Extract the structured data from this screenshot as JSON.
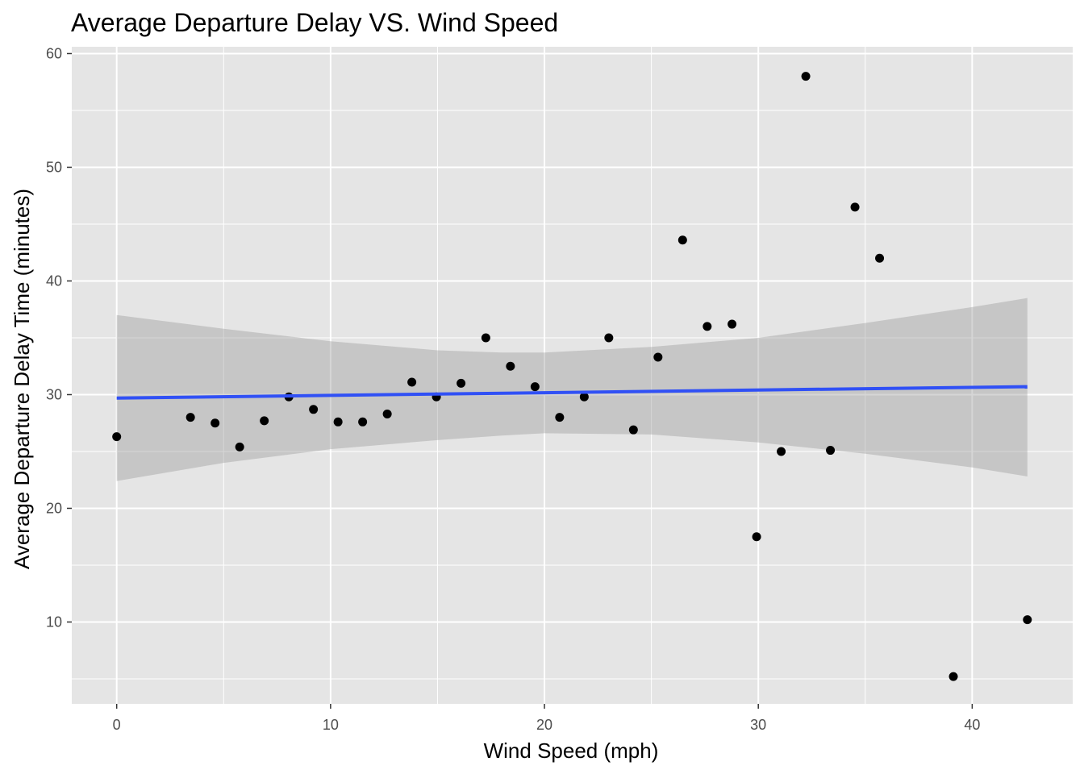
{
  "chart_data": {
    "type": "scatter",
    "title": "Average Departure Delay VS. Wind Speed",
    "xlabel": "Wind Speed (mph)",
    "ylabel": "Average Departure Delay Time (minutes)",
    "xlim": [
      -2.1,
      44.7
    ],
    "ylim": [
      2.8,
      60.6
    ],
    "x_ticks": [
      0,
      10,
      20,
      30,
      40
    ],
    "y_ticks": [
      10,
      20,
      30,
      40,
      50,
      60
    ],
    "grid": true,
    "points": [
      {
        "x": 0.0,
        "y": 26.3
      },
      {
        "x": 3.45,
        "y": 28.0
      },
      {
        "x": 4.6,
        "y": 27.5
      },
      {
        "x": 5.75,
        "y": 25.4
      },
      {
        "x": 6.9,
        "y": 27.7
      },
      {
        "x": 8.05,
        "y": 29.8
      },
      {
        "x": 9.2,
        "y": 28.7
      },
      {
        "x": 10.35,
        "y": 27.6
      },
      {
        "x": 11.5,
        "y": 27.6
      },
      {
        "x": 12.65,
        "y": 28.3
      },
      {
        "x": 13.8,
        "y": 31.1
      },
      {
        "x": 14.95,
        "y": 29.8
      },
      {
        "x": 16.1,
        "y": 31.0
      },
      {
        "x": 17.26,
        "y": 35.0
      },
      {
        "x": 18.41,
        "y": 32.5
      },
      {
        "x": 19.56,
        "y": 30.7
      },
      {
        "x": 20.71,
        "y": 28.0
      },
      {
        "x": 21.86,
        "y": 29.8
      },
      {
        "x": 23.01,
        "y": 35.0
      },
      {
        "x": 24.16,
        "y": 26.9
      },
      {
        "x": 25.31,
        "y": 33.3
      },
      {
        "x": 26.46,
        "y": 43.6
      },
      {
        "x": 27.61,
        "y": 36.0
      },
      {
        "x": 28.77,
        "y": 36.2
      },
      {
        "x": 29.92,
        "y": 17.5
      },
      {
        "x": 31.07,
        "y": 25.0
      },
      {
        "x": 32.22,
        "y": 58.0
      },
      {
        "x": 33.37,
        "y": 25.1
      },
      {
        "x": 34.52,
        "y": 46.5
      },
      {
        "x": 35.67,
        "y": 42.0
      },
      {
        "x": 39.12,
        "y": 5.2
      },
      {
        "x": 42.58,
        "y": 10.2
      }
    ],
    "trend_line": {
      "method": "linear",
      "color": "#3050f5",
      "x": [
        0,
        42.58
      ],
      "y": [
        29.7,
        30.7
      ],
      "confidence_band": {
        "x": [
          0,
          5,
          10,
          15,
          18,
          20,
          25,
          30,
          35,
          40,
          42.58
        ],
        "lower": [
          22.4,
          24.0,
          25.2,
          26.0,
          26.4,
          26.6,
          26.5,
          25.8,
          24.8,
          23.6,
          22.8
        ],
        "upper": [
          37.0,
          35.8,
          34.7,
          33.9,
          33.7,
          33.7,
          34.2,
          35.0,
          36.3,
          37.7,
          38.5
        ]
      }
    },
    "colors": {
      "panel_background": "#e5e5e5",
      "grid_major": "#ffffff",
      "point": "#000000",
      "band_fill": "#999999"
    }
  }
}
